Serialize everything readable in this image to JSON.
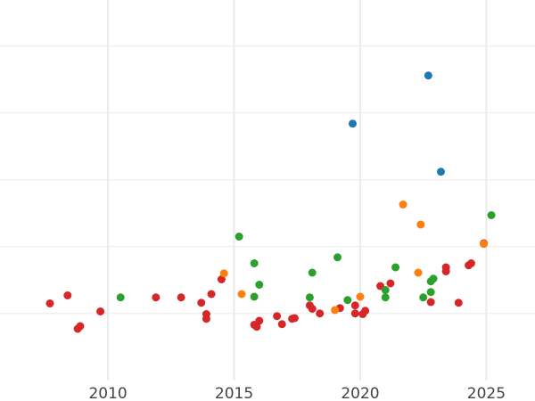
{
  "chart_data": {
    "type": "scatter",
    "title": "",
    "xlabel": "",
    "ylabel": "",
    "xlim": [
      2005.72,
      2026.93
    ],
    "ylim": [
      -0.31,
      5.69
    ],
    "grid": true,
    "x_ticks": [
      2010,
      2015,
      2020,
      2025
    ],
    "x_tick_labels": [
      "2010",
      "2015",
      "2020",
      "2025"
    ],
    "y_gridlines": [
      1,
      2,
      3,
      4,
      5
    ],
    "y_tick_labels_shown": false,
    "series": [
      {
        "color": "#d62728",
        "points": [
          [
            2007.7,
            1.15
          ],
          [
            2008.4,
            1.27
          ],
          [
            2008.8,
            0.77
          ],
          [
            2008.9,
            0.81
          ],
          [
            2009.7,
            1.03
          ],
          [
            2011.9,
            1.24
          ],
          [
            2012.9,
            1.24
          ],
          [
            2013.7,
            1.16
          ],
          [
            2013.9,
            0.99
          ],
          [
            2013.9,
            0.92
          ],
          [
            2014.1,
            1.29
          ],
          [
            2014.5,
            1.51
          ],
          [
            2015.8,
            0.83
          ],
          [
            2015.9,
            0.8
          ],
          [
            2016.0,
            0.89
          ],
          [
            2016.7,
            0.96
          ],
          [
            2016.9,
            0.84
          ],
          [
            2017.3,
            0.92
          ],
          [
            2017.4,
            0.93
          ],
          [
            2018.0,
            1.12
          ],
          [
            2018.1,
            1.07
          ],
          [
            2018.4,
            1.0
          ],
          [
            2019.2,
            1.08
          ],
          [
            2019.8,
            1.12
          ],
          [
            2019.8,
            1.0
          ],
          [
            2020.2,
            1.04
          ],
          [
            2020.1,
            0.99
          ],
          [
            2020.8,
            1.41
          ],
          [
            2021.2,
            1.45
          ],
          [
            2022.8,
            1.17
          ],
          [
            2023.4,
            1.63
          ],
          [
            2023.4,
            1.69
          ],
          [
            2023.9,
            1.16
          ],
          [
            2024.3,
            1.72
          ],
          [
            2024.4,
            1.75
          ],
          [
            2024.9,
            2.05
          ]
        ]
      },
      {
        "color": "#ff7f0e",
        "points": [
          [
            2014.6,
            1.6
          ],
          [
            2015.3,
            1.29
          ],
          [
            2019.0,
            1.05
          ],
          [
            2020.0,
            1.25
          ],
          [
            2021.7,
            2.63
          ],
          [
            2022.4,
            2.33
          ],
          [
            2022.3,
            1.61
          ],
          [
            2024.9,
            2.04
          ]
        ]
      },
      {
        "color": "#2ca02c",
        "points": [
          [
            2010.5,
            1.24
          ],
          [
            2015.2,
            2.15
          ],
          [
            2015.8,
            1.75
          ],
          [
            2016.0,
            1.43
          ],
          [
            2015.8,
            1.25
          ],
          [
            2018.0,
            1.24
          ],
          [
            2018.1,
            1.61
          ],
          [
            2019.1,
            1.84
          ],
          [
            2019.5,
            1.2
          ],
          [
            2021.0,
            1.35
          ],
          [
            2021.0,
            1.24
          ],
          [
            2021.4,
            1.69
          ],
          [
            2022.5,
            1.24
          ],
          [
            2022.8,
            1.32
          ],
          [
            2022.8,
            1.48
          ],
          [
            2022.9,
            1.52
          ],
          [
            2025.2,
            2.47
          ]
        ]
      },
      {
        "color": "#1f77b4",
        "points": [
          [
            2019.7,
            3.84
          ],
          [
            2022.7,
            4.56
          ],
          [
            2023.2,
            3.12
          ]
        ]
      }
    ]
  }
}
